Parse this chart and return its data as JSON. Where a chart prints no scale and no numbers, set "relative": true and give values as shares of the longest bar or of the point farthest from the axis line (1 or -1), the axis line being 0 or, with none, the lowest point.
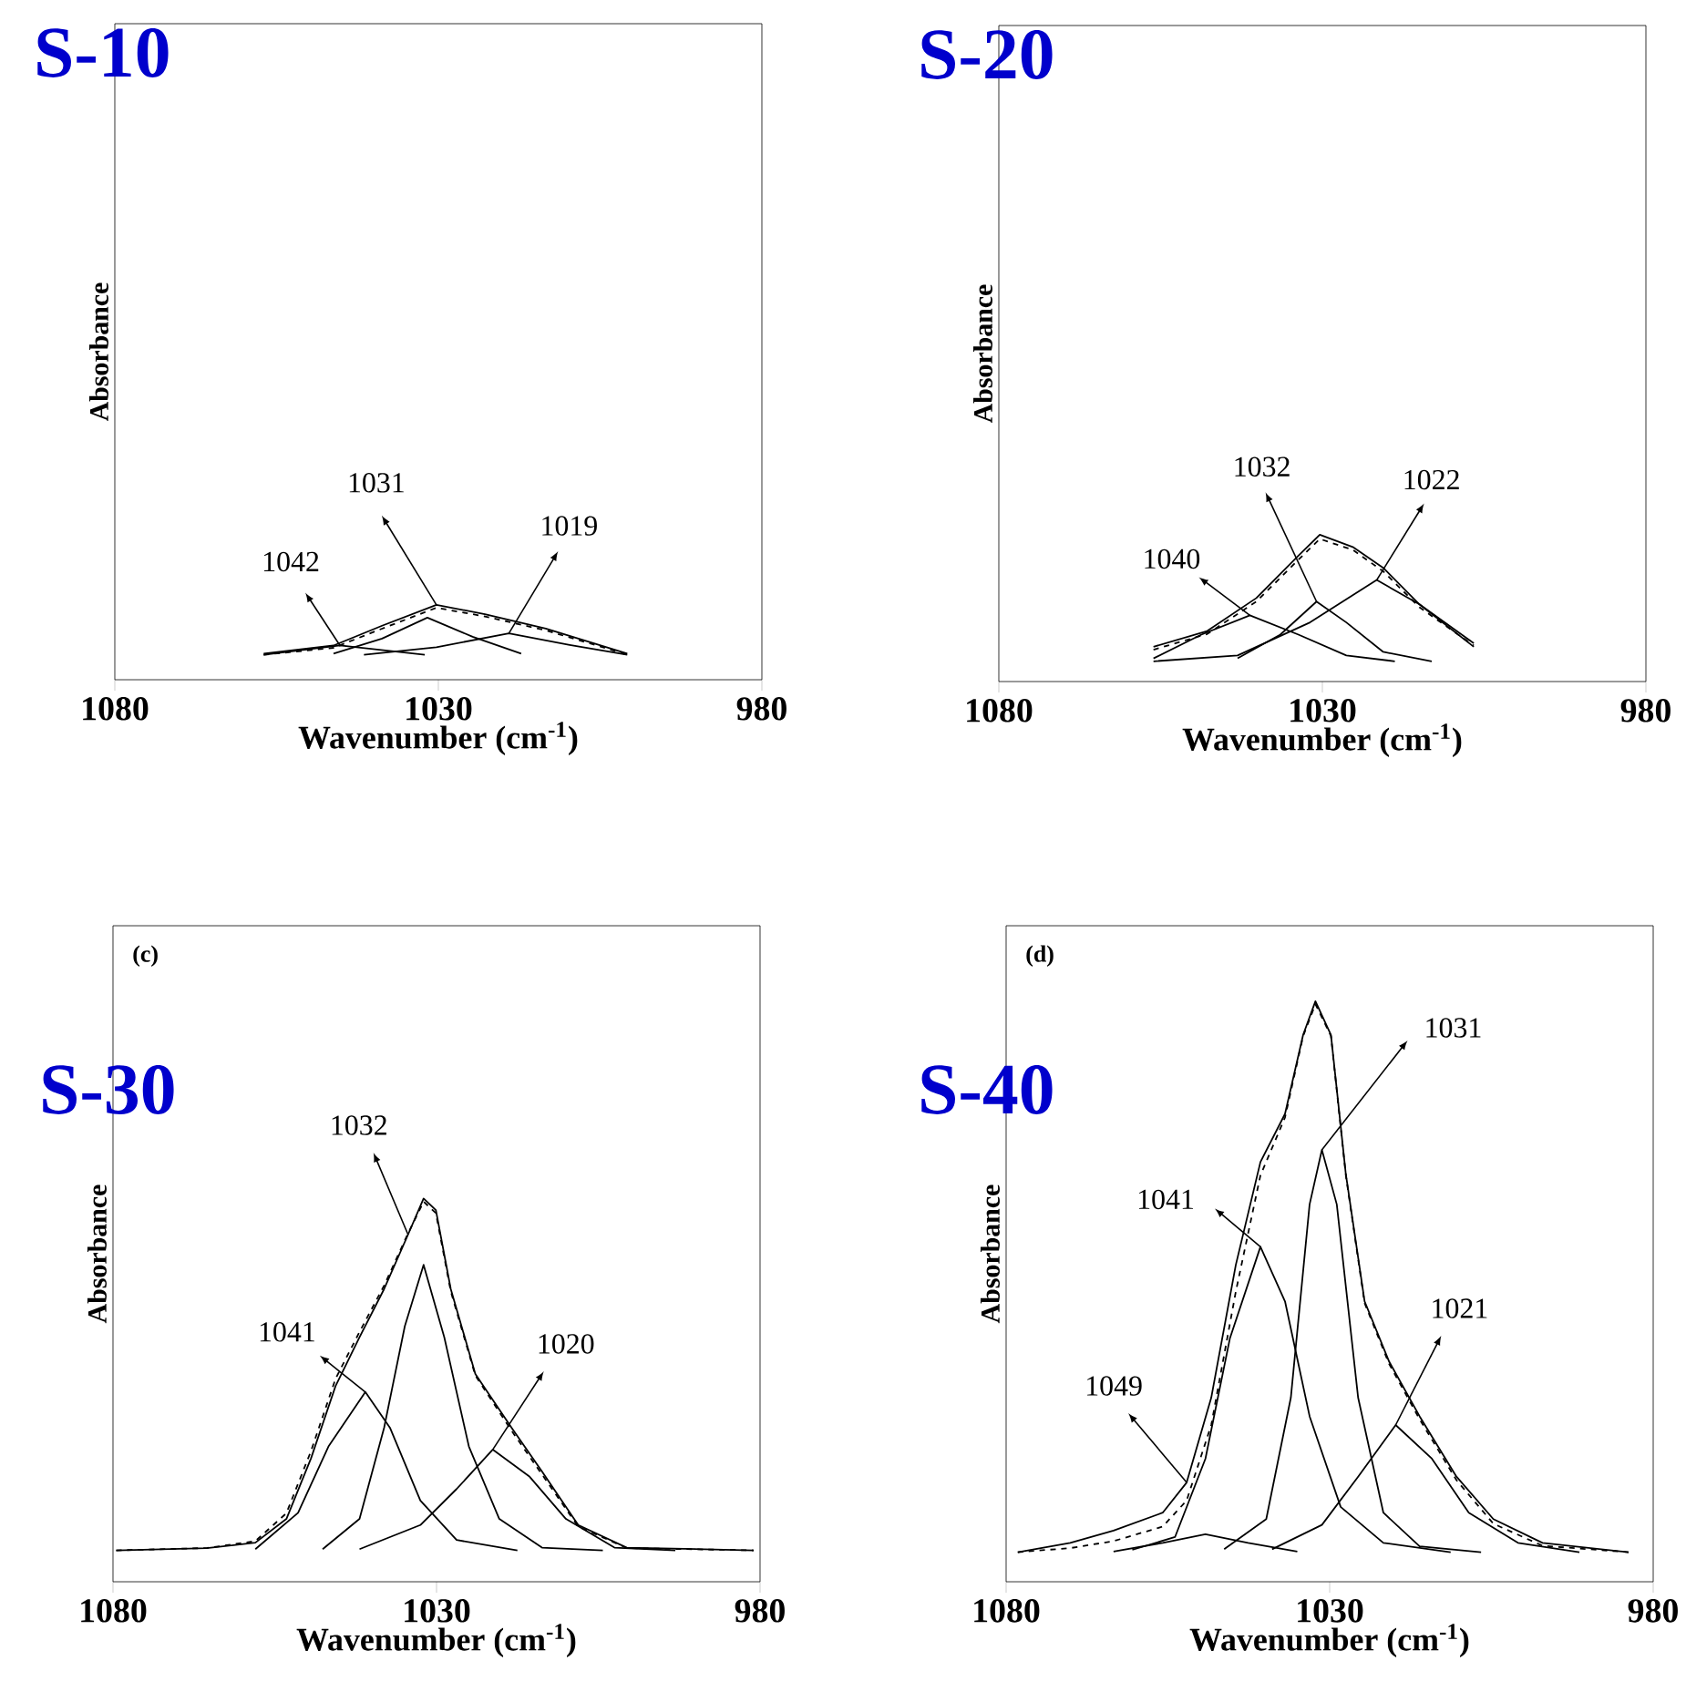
{
  "chart_data": [
    {
      "type": "line",
      "title": "S-10",
      "xlabel": "Wavenumber (cm$^{-1}$)",
      "ylabel": "Absorbance",
      "relative": true,
      "xlim": [
        1080,
        980
      ],
      "xticks": [
        1080,
        1030,
        980
      ],
      "annotations": [
        {
          "text": "1042",
          "x": 1045.2,
          "y": 0.457
        },
        {
          "text": "1031",
          "x": 1030.3,
          "y": 1
        },
        {
          "text": "1019",
          "x": 1019.1,
          "y": 0.62
        }
      ],
      "series": [
        {
          "color": "#000000",
          "line_style": "solid",
          "x": [
            1057,
            1046.2,
            1038.7,
            1030.3,
            1022.8,
            1013.4,
            1004,
            1000.8
          ],
          "values": [
            0.349,
            0.457,
            0.721,
            1,
            0.876,
            0.682,
            0.434,
            0.349
          ]
        },
        {
          "color": "#000000",
          "line_style": "dashed",
          "x": [
            1057,
            1046.2,
            1038.7,
            1030.3,
            1022.8,
            1013.4,
            1004,
            1000.8
          ],
          "values": [
            0.333,
            0.426,
            0.682,
            0.961,
            0.845,
            0.659,
            0.419,
            0.333
          ]
        },
        {
          "color": "#000000",
          "line_style": "solid",
          "x": [
            1057,
            1045.2,
            1032.1
          ],
          "values": [
            0.333,
            0.457,
            0.333
          ]
        },
        {
          "color": "#000000",
          "line_style": "solid",
          "x": [
            1046.2,
            1038.7,
            1031.7,
            1024.7,
            1017.2
          ],
          "values": [
            0.349,
            0.55,
            0.829,
            0.574,
            0.349
          ]
        },
        {
          "color": "#000000",
          "line_style": "solid",
          "x": [
            1041.5,
            1030.3,
            1019.1,
            1009.7,
            1000.8
          ],
          "values": [
            0.333,
            0.434,
            0.62,
            0.465,
            0.333
          ]
        }
      ]
    },
    {
      "type": "line",
      "title": "S-20",
      "xlabel": "Wavenumber (cm$^{-1}$)",
      "ylabel": "Absorbance",
      "relative": true,
      "xlim": [
        1080,
        980
      ],
      "xticks": [
        1080,
        1030,
        980
      ],
      "annotations": [
        {
          "text": "1040",
          "x": 1041.2,
          "y": 0.451
        },
        {
          "text": "1032",
          "x": 1030.9,
          "y": 0.545
        },
        {
          "text": "1022",
          "x": 1021.6,
          "y": 0.692
        }
      ],
      "series": [
        {
          "color": "#000000",
          "line_style": "solid",
          "x": [
            1056.1,
            1047.8,
            1040.2,
            1033.7,
            1030.4,
            1025.3,
            1020.6,
            1015,
            1006.6
          ],
          "values": [
            0.237,
            0.344,
            0.569,
            0.858,
            1,
            0.917,
            0.775,
            0.526,
            0.261
          ]
        },
        {
          "color": "#000000",
          "line_style": "dashed",
          "x": [
            1056.1,
            1047.8,
            1040.2,
            1033.7,
            1030.4,
            1025.3,
            1020.6,
            1015,
            1006.6
          ],
          "values": [
            0.217,
            0.324,
            0.545,
            0.83,
            0.972,
            0.897,
            0.751,
            0.506,
            0.245
          ]
        },
        {
          "color": "#000000",
          "line_style": "solid",
          "x": [
            1056.1,
            1048.7,
            1041.2,
            1033.7,
            1026.3,
            1018.8
          ],
          "values": [
            0.158,
            0.32,
            0.451,
            0.32,
            0.178,
            0.138
          ]
        },
        {
          "color": "#000000",
          "line_style": "solid",
          "x": [
            1043.1,
            1036.5,
            1030.9,
            1026.3,
            1020.6,
            1013.1
          ],
          "values": [
            0.158,
            0.32,
            0.545,
            0.403,
            0.202,
            0.138
          ]
        },
        {
          "color": "#000000",
          "line_style": "solid",
          "x": [
            1056.1,
            1043.1,
            1031.9,
            1021.6,
            1015,
            1006.6
          ],
          "values": [
            0.138,
            0.178,
            0.403,
            0.692,
            0.526,
            0.237
          ]
        }
      ]
    },
    {
      "type": "line",
      "title": "S-30",
      "xlabel": "Wavenumber (cm$^{-1}$)",
      "ylabel": "Absorbance",
      "relative": true,
      "xlim": [
        1080,
        980
      ],
      "xticks": [
        1080,
        1030,
        980
      ],
      "annotations": [
        "(c)",
        {
          "text": "1041",
          "x": 1041,
          "y": 0.495
        },
        {
          "text": "1032",
          "x": 1034.4,
          "y": 0.906
        },
        {
          "text": "1020",
          "x": 1021.3,
          "y": 0.345
        }
      ],
      "series": [
        {
          "color": "#000000",
          "line_style": "solid",
          "x": [
            1079.5,
            1065.5,
            1058,
            1053.2,
            1049.4,
            1045.6,
            1041.9,
            1038.1,
            1034.4,
            1032,
            1030.1,
            1027.8,
            1024,
            1018.4,
            1013.7,
            1008.1,
            1000.6,
            981
          ],
          "values": [
            0.082,
            0.088,
            0.102,
            0.164,
            0.322,
            0.511,
            0.638,
            0.764,
            0.906,
            1,
            0.97,
            0.764,
            0.542,
            0.402,
            0.288,
            0.148,
            0.089,
            0.082
          ]
        },
        {
          "color": "#000000",
          "line_style": "dashed",
          "x": [
            1079.5,
            1065.5,
            1058,
            1053.2,
            1049.4,
            1045.6,
            1041.9,
            1038.1,
            1034.4,
            1032,
            1030.1,
            1027.8,
            1024,
            1018.4,
            1013.7,
            1008.1,
            1000.6,
            981
          ],
          "values": [
            0.082,
            0.088,
            0.106,
            0.179,
            0.341,
            0.53,
            0.652,
            0.773,
            0.909,
            0.992,
            0.962,
            0.758,
            0.538,
            0.394,
            0.28,
            0.144,
            0.088,
            0.082
          ]
        },
        {
          "color": "#000000",
          "line_style": "solid",
          "x": [
            1058,
            1051.4,
            1046.7,
            1041,
            1037.2,
            1032.5,
            1026.9,
            1017.5
          ],
          "values": [
            0.085,
            0.18,
            0.353,
            0.495,
            0.402,
            0.212,
            0.109,
            0.082
          ]
        },
        {
          "color": "#000000",
          "line_style": "solid",
          "x": [
            1047.6,
            1041.9,
            1038.1,
            1034.9,
            1032,
            1028.8,
            1025,
            1020.3,
            1013.7,
            1004.3
          ],
          "values": [
            0.085,
            0.164,
            0.402,
            0.667,
            0.827,
            0.638,
            0.353,
            0.164,
            0.089,
            0.082
          ]
        },
        {
          "color": "#000000",
          "line_style": "solid",
          "x": [
            1041.9,
            1032.5,
            1026.9,
            1021.3,
            1015.6,
            1010,
            1002.5,
            993.1
          ],
          "values": [
            0.085,
            0.148,
            0.242,
            0.345,
            0.274,
            0.164,
            0.089,
            0.082
          ]
        }
      ]
    },
    {
      "type": "line",
      "title": "S-40",
      "xlabel": "Wavenumber (cm$^{-1}$)",
      "ylabel": "Absorbance",
      "relative": true,
      "xlim": [
        1080,
        980
      ],
      "xticks": [
        1080,
        1030,
        980
      ],
      "annotations": [
        "(d)",
        {
          "text": "1049",
          "x": 1052.1,
          "y": 0.171
        },
        {
          "text": "1041",
          "x": 1040.7,
          "y": 0.577
        },
        {
          "text": "1031",
          "x": 1031.2,
          "y": 0.744
        },
        {
          "text": "1021",
          "x": 1019.8,
          "y": 0.27
        }
      ],
      "series": [
        {
          "color": "#000000",
          "line_style": "solid",
          "x": [
            1078.2,
            1070.1,
            1063.4,
            1055.8,
            1052.1,
            1048.3,
            1044.5,
            1040.7,
            1036.9,
            1034.1,
            1032.2,
            1029.8,
            1027.5,
            1024.6,
            1020.8,
            1016.1,
            1010.4,
            1004.7,
            997.1,
            983.8
          ],
          "values": [
            0.051,
            0.067,
            0.088,
            0.119,
            0.171,
            0.317,
            0.546,
            0.723,
            0.806,
            0.942,
            1,
            0.942,
            0.702,
            0.483,
            0.379,
            0.285,
            0.181,
            0.108,
            0.067,
            0.051
          ]
        },
        {
          "color": "#000000",
          "line_style": "dashed",
          "x": [
            1078.2,
            1070.1,
            1063.4,
            1055.8,
            1052.1,
            1048.3,
            1044.5,
            1040.7,
            1036.9,
            1034.1,
            1032.2,
            1029.8,
            1027.5,
            1024.6,
            1020.8,
            1016.1,
            1010.4,
            1004.7,
            997.1,
            983.8
          ],
          "values": [
            0.051,
            0.058,
            0.07,
            0.095,
            0.14,
            0.27,
            0.5,
            0.7,
            0.8,
            0.94,
            0.995,
            0.94,
            0.7,
            0.48,
            0.375,
            0.28,
            0.175,
            0.1,
            0.062,
            0.051
          ]
        },
        {
          "color": "#000000",
          "line_style": "solid",
          "x": [
            1063.4,
            1055.8,
            1049.2,
            1042.6,
            1035
          ],
          "values": [
            0.052,
            0.067,
            0.082,
            0.067,
            0.052
          ]
        },
        {
          "color": "#000000",
          "line_style": "solid",
          "x": [
            1060.5,
            1053.9,
            1049.2,
            1045.4,
            1040.7,
            1036.9,
            1033.1,
            1028.3,
            1021.7,
            1011.3
          ],
          "values": [
            0.055,
            0.077,
            0.212,
            0.42,
            0.577,
            0.483,
            0.285,
            0.129,
            0.067,
            0.051
          ]
        },
        {
          "color": "#000000",
          "line_style": "solid",
          "x": [
            1046.3,
            1039.8,
            1036,
            1033.1,
            1031.2,
            1028.9,
            1025.6,
            1021.7,
            1016.1,
            1006.6
          ],
          "values": [
            0.056,
            0.108,
            0.317,
            0.65,
            0.744,
            0.65,
            0.317,
            0.119,
            0.061,
            0.051
          ]
        },
        {
          "color": "#000000",
          "line_style": "solid",
          "x": [
            1038.9,
            1031.2,
            1025.6,
            1019.8,
            1014.2,
            1008.5,
            1000.9,
            991.4
          ],
          "values": [
            0.056,
            0.098,
            0.181,
            0.27,
            0.212,
            0.119,
            0.067,
            0.051
          ]
        }
      ]
    }
  ]
}
